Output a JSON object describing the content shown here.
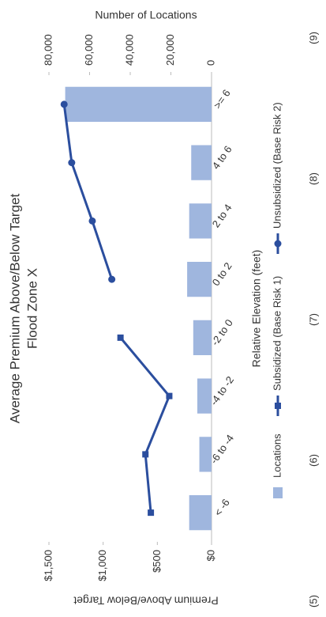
{
  "chart_data": {
    "type": "bar-line",
    "title": "Average Premium Above/Below Target",
    "subtitle": "Flood Zone X",
    "x_label": "Relative Elevation (feet)",
    "y_label": "Premium Above/Below Target",
    "y2_label": "Number of Locations",
    "categories": [
      "< -6",
      "-6 to -4",
      "-4 to -2",
      "-2 to 0",
      "0 to 2",
      "2 to 4",
      "4 to 6",
      ">= 6"
    ],
    "series": [
      {
        "name": "Locations",
        "kind": "bar",
        "axis": "y2",
        "color": "#9fb6de",
        "values": [
          11000,
          6000,
          7000,
          9000,
          12000,
          11000,
          10000,
          72000
        ]
      },
      {
        "name": "Subsidized (Base Risk 1)",
        "kind": "line",
        "marker": "square",
        "color": "#2b4e9e",
        "values": [
          560,
          610,
          390,
          840,
          null,
          null,
          null,
          null
        ]
      },
      {
        "name": "Unsubsidized (Base Risk 2)",
        "kind": "line",
        "marker": "circle",
        "color": "#2b4e9e",
        "values": [
          null,
          null,
          null,
          null,
          920,
          1100,
          1290,
          1360
        ]
      }
    ],
    "ylim": [
      0,
      1500
    ],
    "yticks": [
      {
        "value": 0,
        "label": "$0"
      },
      {
        "value": 500,
        "label": "$500"
      },
      {
        "value": 1000,
        "label": "$1,000"
      },
      {
        "value": 1500,
        "label": "$1,500"
      }
    ],
    "y2lim": [
      0,
      80000
    ],
    "y2ticks": [
      0,
      {
        "value": 20000,
        "label": "20,000"
      },
      {
        "value": 40000,
        "label": "40,000"
      },
      {
        "value": 60000,
        "label": "60,000"
      },
      {
        "value": 80000,
        "label": "80,000"
      }
    ],
    "legend": "bottom",
    "footer": [
      "(5)",
      "(6)",
      "(7)",
      "(8)",
      "(9)"
    ]
  }
}
